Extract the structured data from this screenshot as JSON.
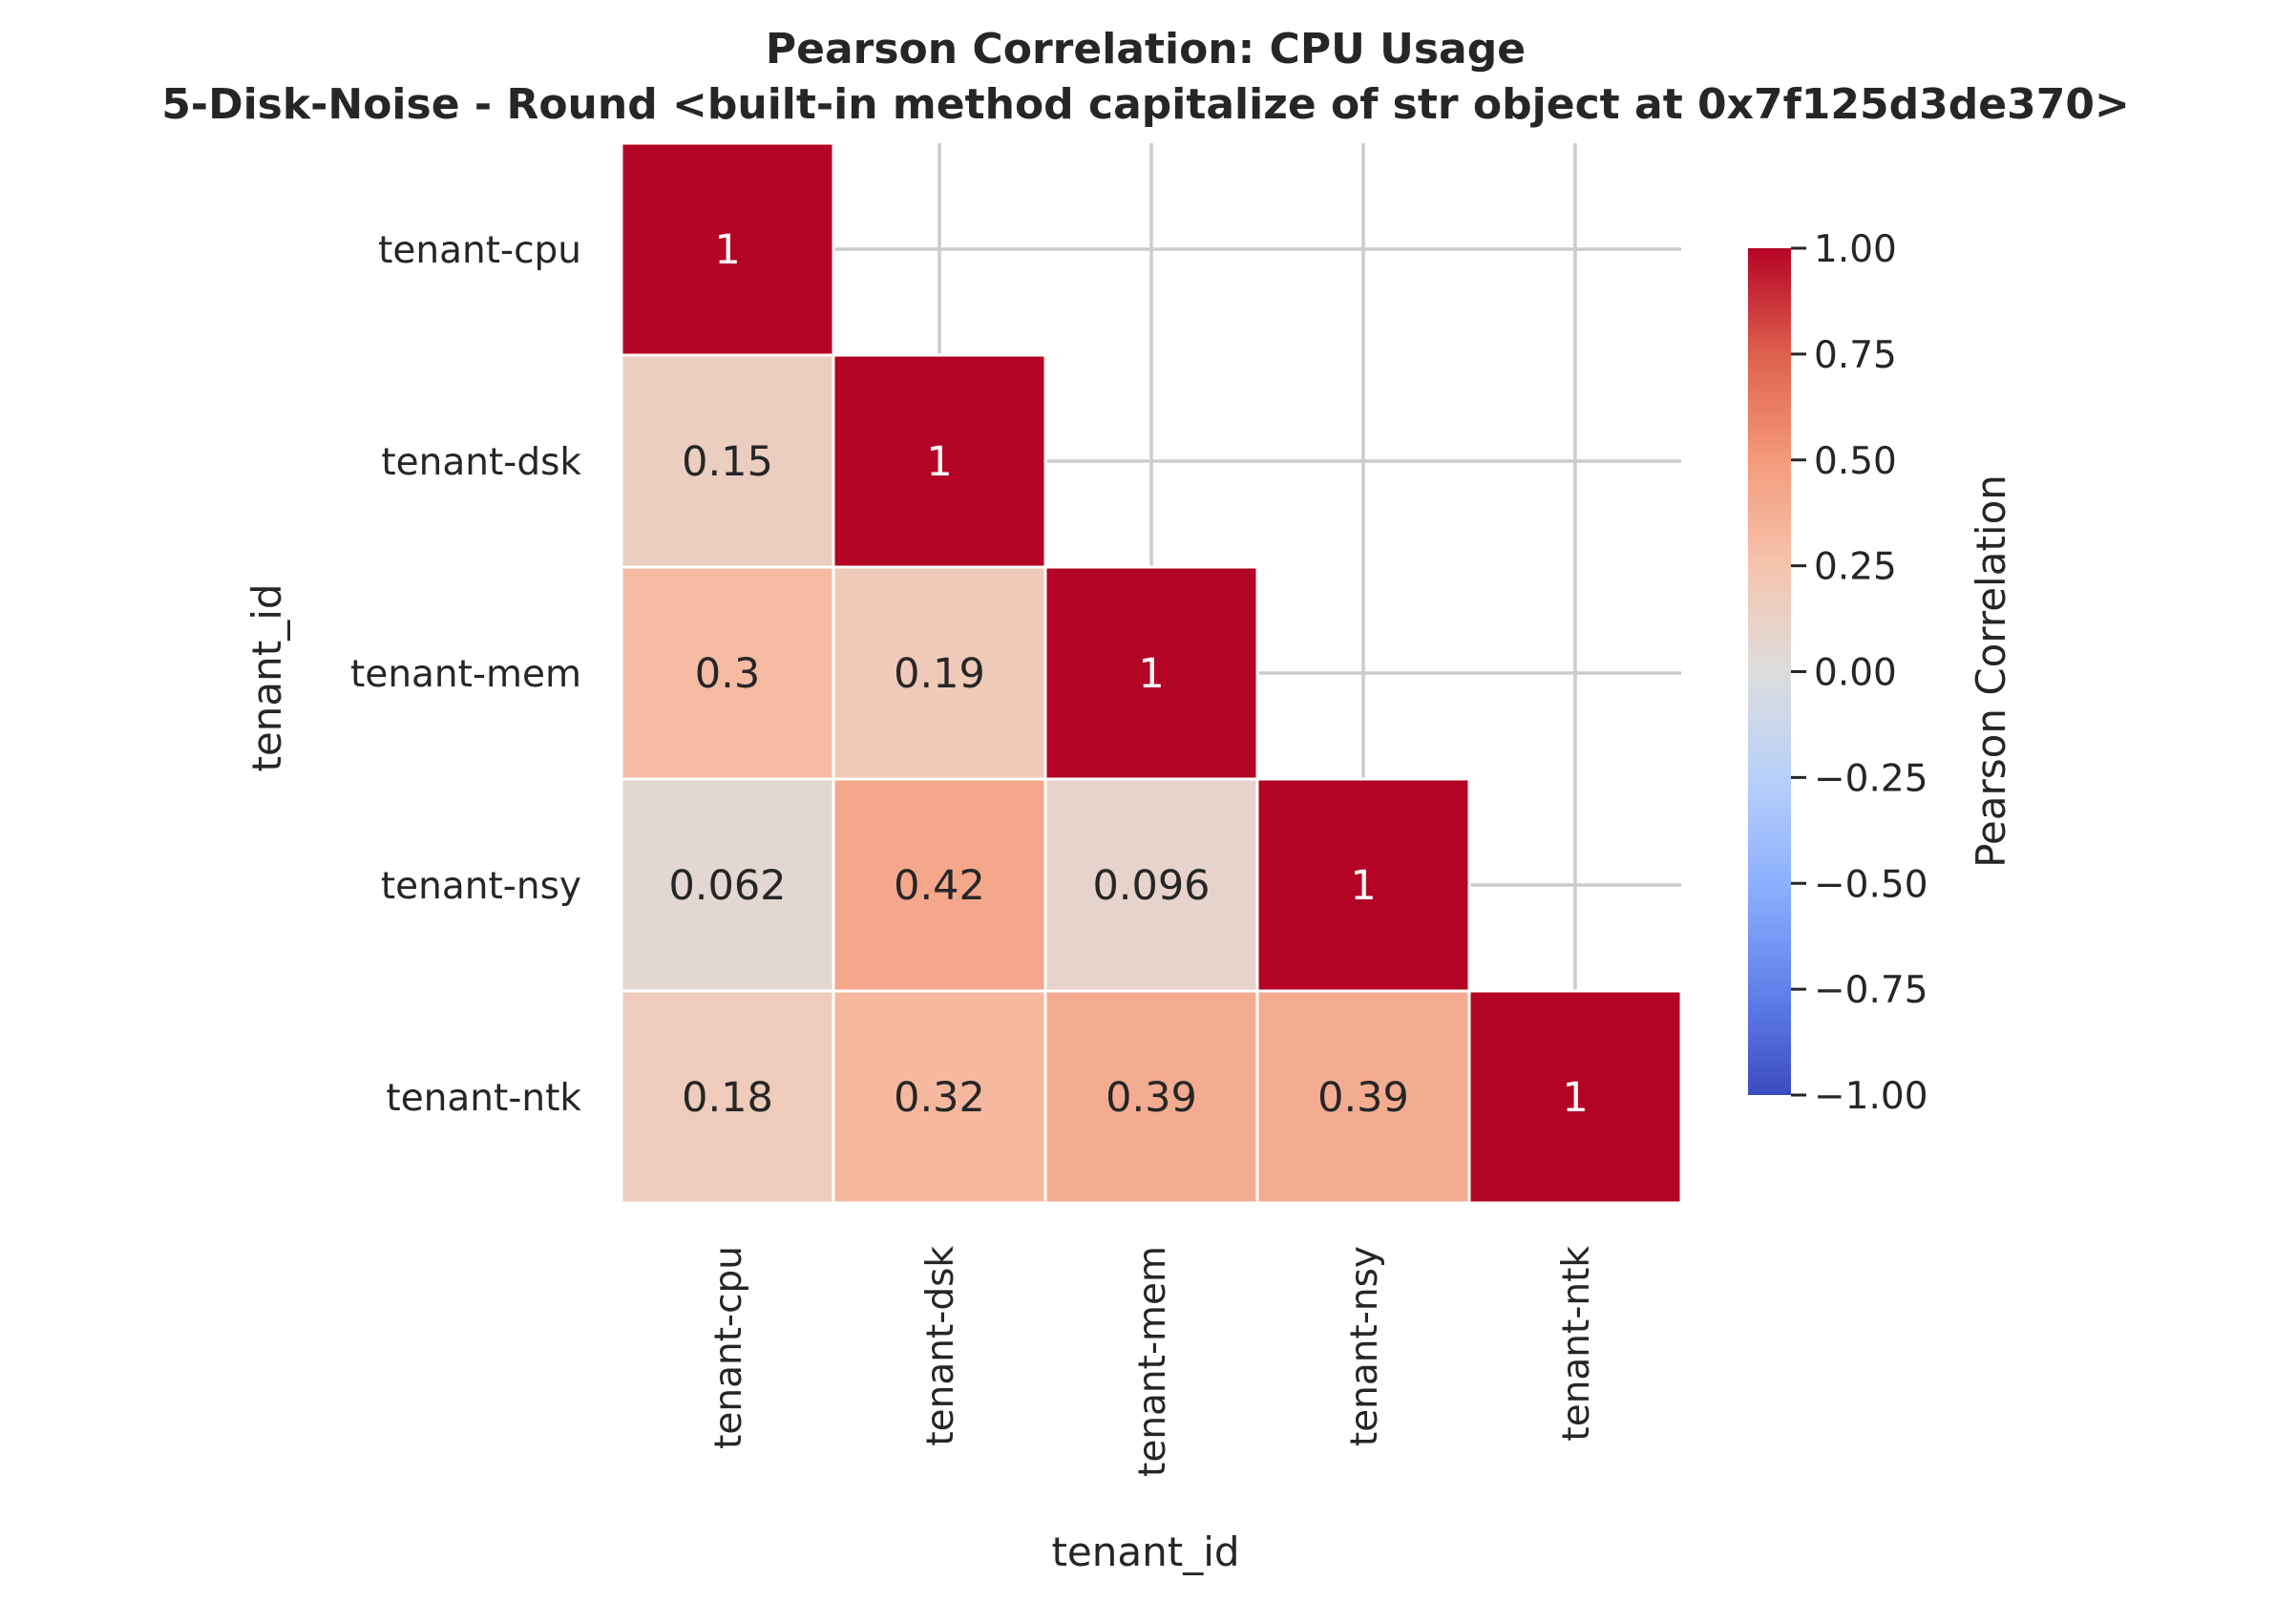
{
  "chart_data": {
    "type": "heatmap",
    "title": "Pearson Correlation: CPU Usage",
    "subtitle": "5-Disk-Noise - Round <built-in method capitalize of str object at 0x7f125d3de370>",
    "xlabel": "tenant_id",
    "ylabel": "tenant_id",
    "x_categories": [
      "tenant-cpu",
      "tenant-dsk",
      "tenant-mem",
      "tenant-nsy",
      "tenant-ntk"
    ],
    "y_categories": [
      "tenant-cpu",
      "tenant-dsk",
      "tenant-mem",
      "tenant-nsy",
      "tenant-ntk"
    ],
    "mask": "upper-triangle",
    "matrix": [
      [
        1,
        null,
        null,
        null,
        null
      ],
      [
        0.15,
        1,
        null,
        null,
        null
      ],
      [
        0.3,
        0.19,
        1,
        null,
        null
      ],
      [
        0.062,
        0.42,
        0.096,
        1,
        null
      ],
      [
        0.18,
        0.32,
        0.39,
        0.39,
        1
      ]
    ],
    "annotations": [
      [
        "1",
        "",
        "",
        "",
        ""
      ],
      [
        "0.15",
        "1",
        "",
        "",
        ""
      ],
      [
        "0.3",
        "0.19",
        "1",
        "",
        ""
      ],
      [
        "0.062",
        "0.42",
        "0.096",
        "1",
        ""
      ],
      [
        "0.18",
        "0.32",
        "0.39",
        "0.39",
        "1"
      ]
    ],
    "colormap": "coolwarm",
    "vmin": -1,
    "vmax": 1,
    "grid": true,
    "colorbar": {
      "label": "Pearson Correlation",
      "ticks": [
        1.0,
        0.75,
        0.5,
        0.25,
        0.0,
        -0.25,
        -0.5,
        -0.75,
        -1.0
      ],
      "tick_labels": [
        "1.00",
        "0.75",
        "0.50",
        "0.25",
        "0.00",
        "−0.25",
        "−0.50",
        "−0.75",
        "−1.00"
      ],
      "position": "right"
    }
  }
}
